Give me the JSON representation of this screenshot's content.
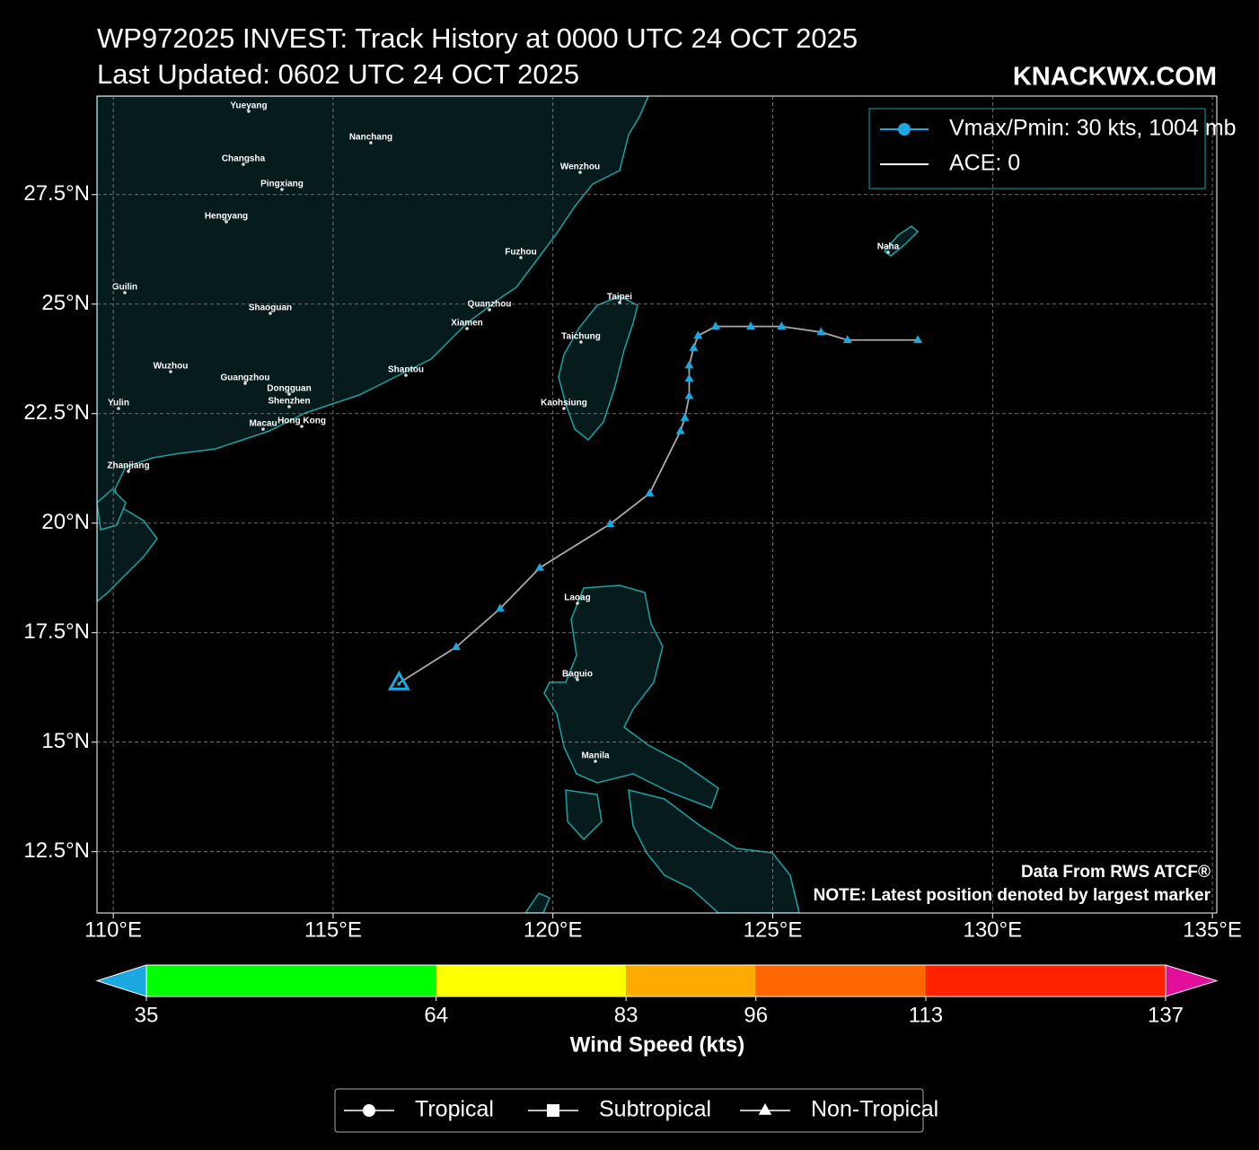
{
  "chart_data": {
    "type": "track-map",
    "title": "WP972025 INVEST: Track History at 0000 UTC 24 OCT 2025",
    "subtitle": "Last Updated: 0602 UTC 24 OCT 2025",
    "watermark": "KNACKWX.COM",
    "xlim": [
      109.63,
      135.1
    ],
    "ylim": [
      11.1,
      29.75
    ],
    "xticks": [
      {
        "value": 110,
        "label": "110°E"
      },
      {
        "value": 115,
        "label": "115°E"
      },
      {
        "value": 120,
        "label": "120°E"
      },
      {
        "value": 125,
        "label": "125°E"
      },
      {
        "value": 130,
        "label": "130°E"
      },
      {
        "value": 135,
        "label": "135°E"
      }
    ],
    "yticks": [
      {
        "value": 12.5,
        "label": "12.5°N"
      },
      {
        "value": 15,
        "label": "15°N"
      },
      {
        "value": 17.5,
        "label": "17.5°N"
      },
      {
        "value": 20,
        "label": "20°N"
      },
      {
        "value": 22.5,
        "label": "22.5°N"
      },
      {
        "value": 25,
        "label": "25°N"
      },
      {
        "value": 27.5,
        "label": "27.5°N"
      }
    ],
    "grid": true,
    "legend": "upper right",
    "series": [
      {
        "name": "Vmax/Pmin: 30 kts, 1004 mb",
        "color": "#1ba8e0",
        "x": [
          128.3,
          126.7,
          126.1,
          125.2,
          124.5,
          123.7,
          123.3,
          123.2,
          123.1,
          123.1,
          123.1,
          123.0,
          122.9,
          122.2,
          121.3,
          119.7,
          118.8,
          117.8,
          116.5
        ],
        "values": [
          24.18,
          24.18,
          24.36,
          24.49,
          24.49,
          24.49,
          24.28,
          24.0,
          23.6,
          23.3,
          22.9,
          22.4,
          22.1,
          20.68,
          19.98,
          18.98,
          18.05,
          17.17,
          16.35
        ]
      }
    ],
    "ace_label": "ACE: 0",
    "annotations": [
      "Data From RWS ATCF®",
      "NOTE: Latest position denoted by largest marker"
    ],
    "cities": [
      "Yueyang",
      "Nanchang",
      "Changsha",
      "Pingxiang",
      "Wenzhou",
      "Hengyang",
      "Naha",
      "Fuzhou",
      "Guilin",
      "Shaoguan",
      "Quanzhou",
      "Taipei",
      "Xiamen",
      "Taichung",
      "Wuzhou",
      "Shantou",
      "Guangzhou",
      "Dongguan",
      "Shenzhen",
      "Kaohsiung",
      "Yulin",
      "Hong Kong",
      "Macau",
      "Zhanjiang",
      "Laoag",
      "Baguio",
      "Manila"
    ],
    "colorbar": {
      "label": "Wind Speed (kts)",
      "ticks": [
        35,
        64,
        83,
        96,
        113,
        137
      ],
      "colors": [
        "#1ba8e0",
        "#00ff00",
        "#ffff00",
        "#ffaa00",
        "#ff6600",
        "#ff2200",
        "#e0109a"
      ]
    },
    "storm_types": [
      "Tropical",
      "Subtropical",
      "Non-Tropical"
    ]
  }
}
